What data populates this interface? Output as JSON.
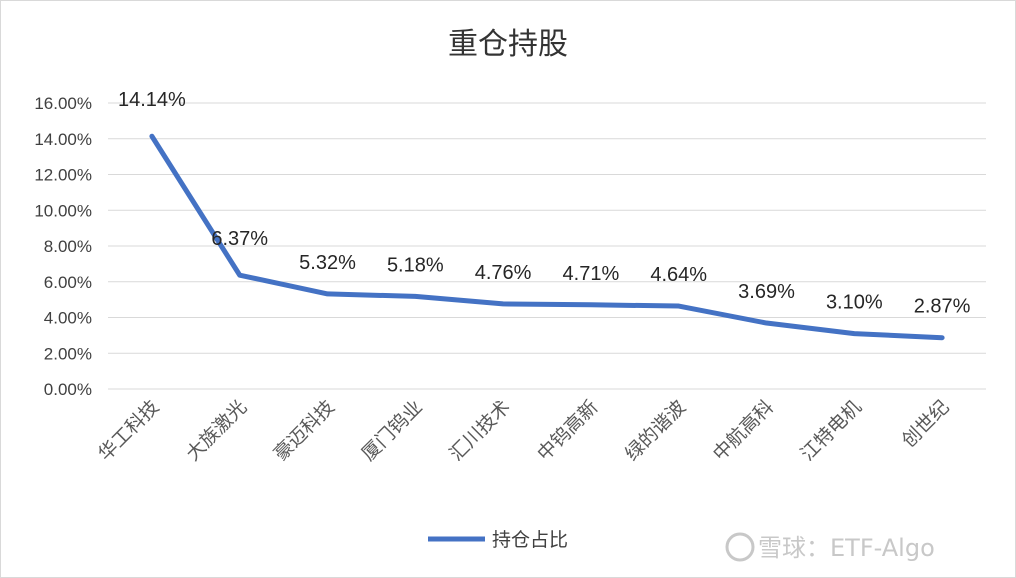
{
  "chart_data": {
    "type": "line",
    "title": "重仓持股",
    "categories": [
      "华工科技",
      "大族激光",
      "豪迈科技",
      "厦门钨业",
      "汇川技术",
      "中钨高新",
      "绿的谐波",
      "中航高科",
      "江特电机",
      "创世纪"
    ],
    "series": [
      {
        "name": "持仓占比",
        "values": [
          14.14,
          6.37,
          5.32,
          5.18,
          4.76,
          4.71,
          4.64,
          3.69,
          3.1,
          2.87
        ],
        "color": "#4472c4"
      }
    ],
    "data_labels": [
      "14.14%",
      "6.37%",
      "5.32%",
      "5.18%",
      "4.76%",
      "4.71%",
      "4.64%",
      "3.69%",
      "3.10%",
      "2.87%"
    ],
    "y_ticks": [
      "0.00%",
      "2.00%",
      "4.00%",
      "6.00%",
      "8.00%",
      "10.00%",
      "12.00%",
      "14.00%",
      "16.00%"
    ],
    "ylim": [
      0,
      16
    ],
    "grid": true,
    "legend": "bottom"
  },
  "watermark": "雪球：ETF-Algo"
}
